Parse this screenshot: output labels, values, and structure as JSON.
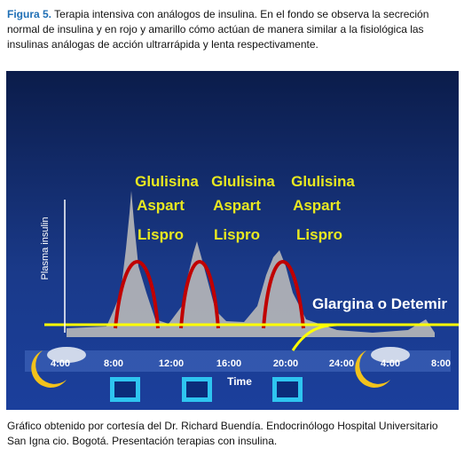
{
  "caption": {
    "label": "Figura 5.",
    "text": "Terapia intensiva con análogos de insulina. En el fondo se observa la secreción normal de insulina y en rojo y amarillo cómo actúan de manera similar a la fisiológica las insulinas análogas de acción ultrarrápida y lenta respectivamente."
  },
  "figure": {
    "y_label": "Plasma insulin",
    "peaks": [
      {
        "line1": "Glulisina",
        "line2": "Aspart",
        "line3": "Lispro"
      },
      {
        "line1": "Glulisina",
        "line2": "Aspart",
        "line3": "Lispro"
      },
      {
        "line1": "Glulisina",
        "line2": "Aspart",
        "line3": "Lispro"
      }
    ],
    "basal_label": "Glargina o Detemir",
    "times": [
      "4:00",
      "8:00",
      "12:00",
      "16:00",
      "20:00",
      "24:00",
      "4:00",
      "8:00"
    ],
    "x_label": "Time"
  },
  "footer": "Gráfico obtenido por cortesía del Dr. Richard Buendía. Endocrinólogo Hospital Universitario San Igna cio. Bogotá. Presentación terapias con insulina."
}
